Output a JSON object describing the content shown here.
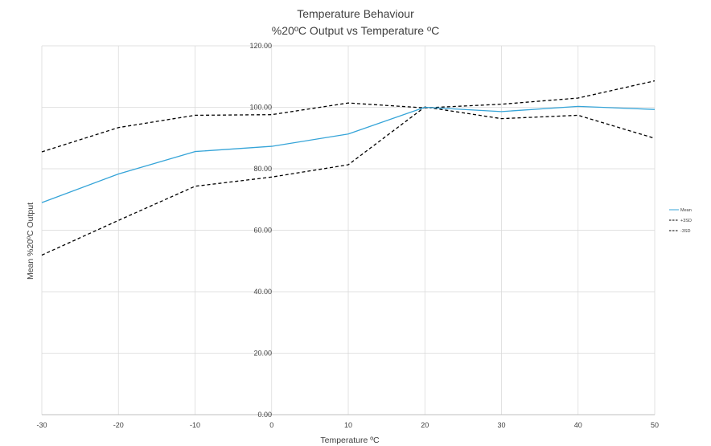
{
  "chart_data": {
    "type": "line",
    "title": "Temperature Behaviour",
    "subtitle": "%20ºC Output vs Temperature ºC",
    "xlabel": "Temperature ºC",
    "ylabel": "Mean %20ºC Output",
    "x": [
      -30,
      -20,
      -10,
      0,
      10,
      20,
      30,
      40,
      50
    ],
    "xlim": [
      -30,
      50
    ],
    "ylim": [
      0,
      120
    ],
    "y_ticks": [
      "0.00",
      "20.00",
      "40.00",
      "60.00",
      "80.00",
      "100.00",
      "120.00"
    ],
    "y_tick_values": [
      0,
      20,
      40,
      60,
      80,
      100,
      120
    ],
    "x_ticks": [
      "-30",
      "-20",
      "-10",
      "0",
      "10",
      "20",
      "30",
      "40",
      "50"
    ],
    "grid": true,
    "legend_position": "right",
    "series": [
      {
        "name": "Mean",
        "values": [
          69.0,
          78.3,
          85.6,
          87.3,
          91.3,
          100.0,
          98.6,
          100.3,
          99.3
        ],
        "color": "#35A4D8",
        "dash": "solid"
      },
      {
        "name": "+3SD",
        "values": [
          85.5,
          93.4,
          97.4,
          97.6,
          101.4,
          99.8,
          101.0,
          103.0,
          108.6
        ],
        "color": "#000000",
        "dash": "dashed"
      },
      {
        "name": "-3SD",
        "values": [
          51.9,
          63.2,
          74.3,
          77.3,
          81.3,
          100.1,
          96.3,
          97.4,
          89.9
        ],
        "color": "#000000",
        "dash": "dashed"
      }
    ]
  }
}
